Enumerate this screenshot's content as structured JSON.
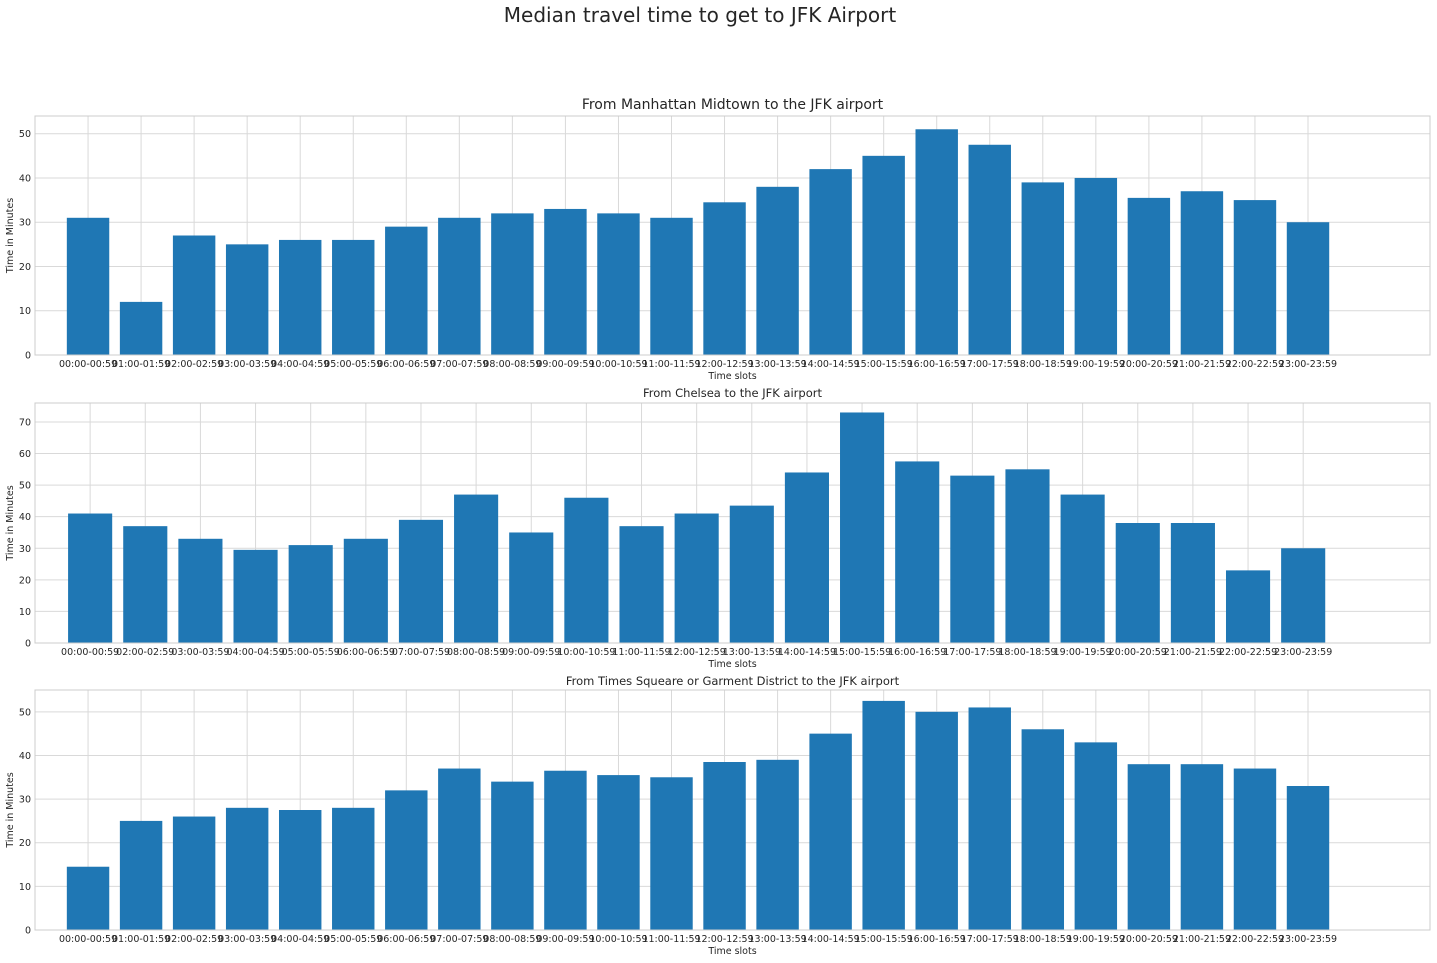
{
  "figure_title": "Median travel time to get to JFK Airport",
  "colors": {
    "bar": "#1f77b4",
    "grid": "#d9d9d9",
    "frame": "#cccccc",
    "text": "#262626"
  },
  "chart_data": [
    {
      "type": "bar",
      "title": "From Manhattan Midtown to the JFK airport",
      "xlabel": "Time slots",
      "ylabel": "Time in Minutes",
      "ylim": [
        0,
        54
      ],
      "yticks": [
        0,
        10,
        20,
        30,
        40,
        50
      ],
      "grid": true,
      "categories": [
        "00:00-00:59",
        "01:00-01:59",
        "02:00-02:59",
        "03:00-03:59",
        "04:00-04:59",
        "05:00-05:59",
        "06:00-06:59",
        "07:00-07:59",
        "08:00-08:59",
        "09:00-09:59",
        "10:00-10:59",
        "11:00-11:59",
        "12:00-12:59",
        "13:00-13:59",
        "14:00-14:59",
        "15:00-15:59",
        "16:00-16:59",
        "17:00-17:59",
        "18:00-18:59",
        "19:00-19:59",
        "20:00-20:59",
        "21:00-21:59",
        "22:00-22:59",
        "23:00-23:59"
      ],
      "tick_labels": [
        "00:00-00:59",
        "01:00-01:59",
        "02:00-02:59",
        "03:00-03:59",
        "04:00-04:59",
        "05:00-05:59",
        "06:00-06:59",
        "07:00-07:59",
        "08:00-08:59",
        "09:00-09:59",
        "10:00-10:59",
        "11:00-11:59",
        "12:00-12:59",
        "13:00-13:59",
        "14:00-14:59",
        "15:00-15:59",
        "16:00-16:59",
        "17:00-17:59",
        "18:00-18:59",
        "19:00-19:59",
        "20:00-20:59",
        "21:00-21:59",
        "22:00-22:59",
        "23:00-23:59"
      ],
      "values": [
        31,
        12,
        27,
        25,
        26,
        26,
        29,
        31,
        32,
        33,
        32,
        31,
        34.5,
        38,
        42,
        45,
        51,
        47.5,
        39,
        40,
        35.5,
        37,
        35,
        30
      ]
    },
    {
      "type": "bar",
      "title": "From Chelsea to the JFK airport",
      "xlabel": "Time slots",
      "ylabel": "Time in Minutes",
      "ylim": [
        0,
        76
      ],
      "yticks": [
        0,
        10,
        20,
        30,
        40,
        50,
        60,
        70
      ],
      "grid": true,
      "categories": [
        "00:00-00:59",
        "02:00-02:59",
        "03:00-03:59",
        "04:00-04:59",
        "05:00-05:59",
        "06:00-06:59",
        "07:00-07:59",
        "08:00-08:59",
        "09:00-09:59",
        "10:00-10:59",
        "11:00-11:59",
        "12:00-12:59",
        "13:00-13:59",
        "14:00-14:59",
        "15:00-15:59",
        "16:00-16:59",
        "17:00-17:59",
        "18:00-18:59",
        "19:00-19:59",
        "20:00-20:59",
        "21:00-21:59",
        "22:00-22:59",
        "23:00-23:59"
      ],
      "tick_labels": [
        "00:00-00:59",
        "02:00-02:59",
        "03:00-03:59",
        "04:00-04:59",
        "05:00-05:59",
        "06:00-06:59",
        "07:00-07:59",
        "08:00-08:59",
        "09:00-09:59",
        "10:00-10:59",
        "11:00-11:59",
        "12:00-12:59",
        "13:00-13:59",
        "14:00-14:59",
        "15:00-15:59",
        "16:00-16:59",
        "17:00-17:59",
        "18:00-18:59",
        "19:00-19:59",
        "20:00-20:59",
        "21:00-21:59",
        "22:00-22:59",
        "23:00-23:59"
      ],
      "values": [
        41,
        37,
        33,
        29.5,
        31,
        33,
        39,
        47,
        35,
        46,
        37,
        41,
        43.5,
        54,
        73,
        57.5,
        53,
        55,
        47,
        38,
        38,
        23,
        30
      ]
    },
    {
      "type": "bar",
      "title": "From Times Squeare or Garment District to the JFK airport",
      "xlabel": "Time slots",
      "ylabel": "Time in Minutes",
      "ylim": [
        0,
        55
      ],
      "yticks": [
        0,
        10,
        20,
        30,
        40,
        50
      ],
      "grid": true,
      "categories": [
        "00:00-00:59",
        "01:00-01:59",
        "02:00-02:59",
        "03:00-03:59",
        "04:00-04:59",
        "05:00-05:59",
        "06:00-06:59",
        "07:00-07:59",
        "08:00-08:59",
        "09:00-09:59",
        "10:00-10:59",
        "11:00-11:59",
        "12:00-12:59",
        "13:00-13:59",
        "14:00-14:59",
        "15:00-15:59",
        "16:00-16:59",
        "17:00-17:59",
        "18:00-18:59",
        "19:00-19:59",
        "20:00-20:59",
        "21:00-21:59",
        "22:00-22:59",
        "23:00-23:59"
      ],
      "tick_labels": [
        "00:00-00:59",
        "01:00-01:59",
        "02:00-02:59",
        "03:00-03:59",
        "04:00-04:59",
        "05:00-05:59",
        "06:00-06:59",
        "07:00-07:59",
        "08:00-08:59",
        "09:00-09:59",
        "10:00-10:59",
        "11:00-11:59",
        "12:00-12:59",
        "13:00-13:59",
        "14:00-14:59",
        "15:00-15:59",
        "16:00-16:59",
        "17:00-17:59",
        "18:00-18:59",
        "19:00-19:59",
        "20:00-20:59",
        "21:00-21:59",
        "22:00-22:59",
        "23:00-23:59"
      ],
      "values": [
        14.5,
        25,
        26,
        28,
        27.5,
        28,
        32,
        37,
        34,
        36.5,
        35.5,
        35,
        38.5,
        39,
        45,
        52.5,
        50,
        51,
        46,
        43,
        38,
        38,
        37,
        33
      ]
    }
  ]
}
